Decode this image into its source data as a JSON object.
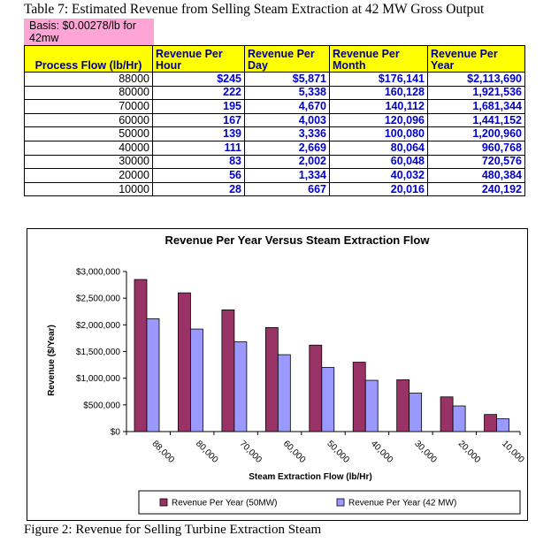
{
  "table_caption": "Table 7: Estimated Revenue from Selling Steam Extraction at 42 MW Gross Output",
  "basis_note": "Basis: $0.00278/lb for 42mw",
  "table": {
    "headers": [
      "Process Flow (lb/Hr)",
      "Revenue Per Hour",
      "Revenue Per Day",
      "Revenue Per Month",
      "Revenue Per Year"
    ],
    "rows": [
      [
        "88000",
        "$245",
        "$5,871",
        "$176,141",
        "$2,113,690"
      ],
      [
        "80000",
        "222",
        "5,338",
        "160,128",
        "1,921,536"
      ],
      [
        "70000",
        "195",
        "4,670",
        "140,112",
        "1,681,344"
      ],
      [
        "60000",
        "167",
        "4,003",
        "120,096",
        "1,441,152"
      ],
      [
        "50000",
        "139",
        "3,336",
        "100,080",
        "1,200,960"
      ],
      [
        "40000",
        "111",
        "2,669",
        "80,064",
        "960,768"
      ],
      [
        "30000",
        "83",
        "2,002",
        "60,048",
        "720,576"
      ],
      [
        "20000",
        "56",
        "1,334",
        "40,032",
        "480,384"
      ],
      [
        "10000",
        "28",
        "667",
        "20,016",
        "240,192"
      ]
    ]
  },
  "chart_data": {
    "type": "bar",
    "title": "Revenue Per Year Versus Steam Extraction Flow",
    "xlabel": "Steam Extraction Flow (lb/Hr)",
    "ylabel": "Revenue ($/Year)",
    "categories": [
      "88,000",
      "80,000",
      "70,000",
      "60,000",
      "50,000",
      "40,000",
      "30,000",
      "20,000",
      "10,000"
    ],
    "ylim": [
      0,
      3000000
    ],
    "yticks": [
      0,
      500000,
      1000000,
      1500000,
      2000000,
      2500000,
      3000000
    ],
    "ytick_labels": [
      "$0",
      "$500,000",
      "$1,000,000",
      "$1,500,000",
      "$2,000,000",
      "$2,500,000",
      "$3,000,000"
    ],
    "grid": false,
    "legend_position": "bottom",
    "series": [
      {
        "name": "Revenue Per Year (50MW)",
        "color": "#993366",
        "values": [
          2850000,
          2600000,
          2280000,
          1950000,
          1620000,
          1300000,
          970000,
          650000,
          320000
        ]
      },
      {
        "name": "Revenue Per Year (42 MW)",
        "color": "#9999ff",
        "values": [
          2113690,
          1921536,
          1681344,
          1441152,
          1200960,
          960768,
          720576,
          480384,
          240192
        ]
      }
    ]
  },
  "figure_caption": "Figure 2: Revenue for Selling Turbine Extraction Steam"
}
